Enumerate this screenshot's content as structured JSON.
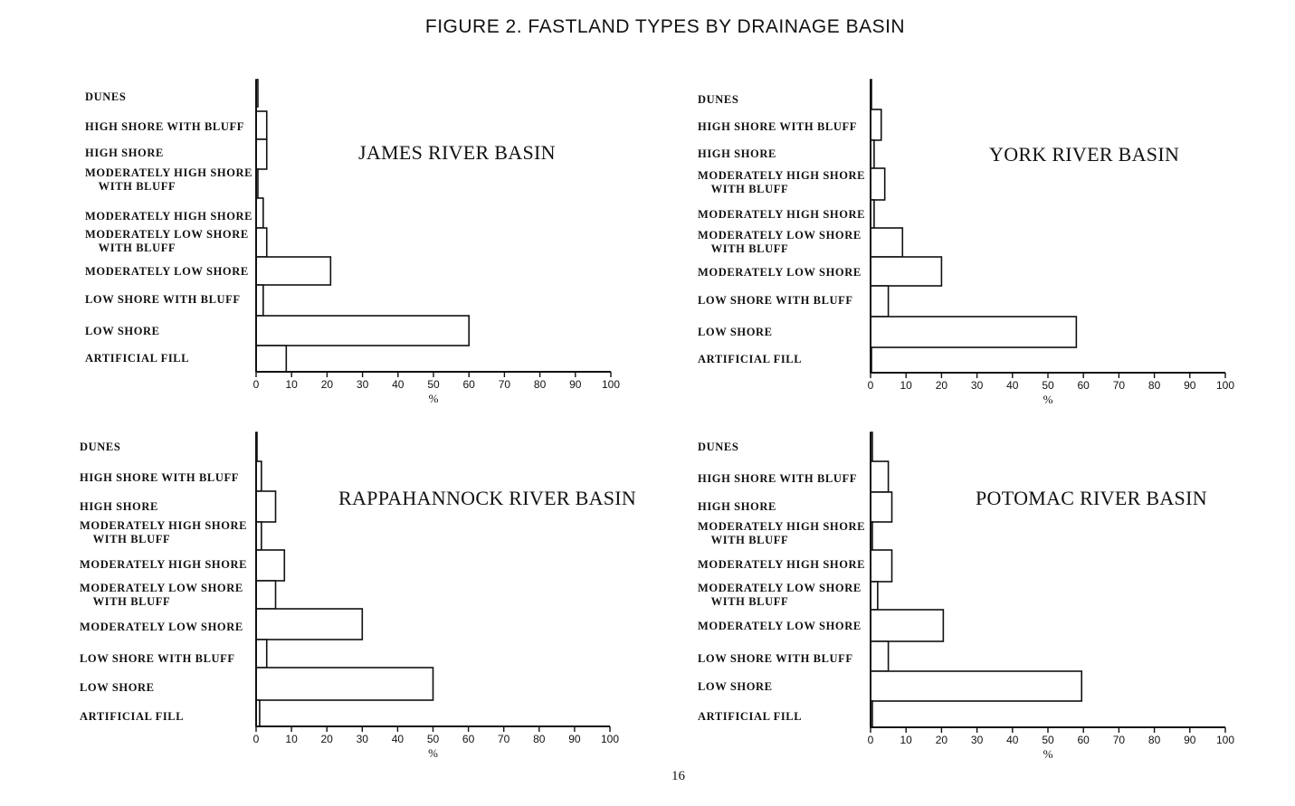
{
  "title": "FIGURE 2.  FASTLAND TYPES BY DRAINAGE BASIN",
  "page_number": "16",
  "chart_data": [
    {
      "type": "bar",
      "orientation": "horizontal",
      "title": "JAMES RIVER BASIN",
      "xlabel": "%",
      "xlim": [
        0,
        100
      ],
      "xticks": [
        "0",
        "10",
        "20",
        "30",
        "40",
        "50",
        "60",
        "70",
        "80",
        "90",
        "100"
      ],
      "categories": [
        "DUNES",
        "HIGH SHORE WITH BLUFF",
        "HIGH SHORE",
        "MODERATELY HIGH SHORE\n    WITH BLUFF",
        "MODERATELY HIGH SHORE",
        "MODERATELY LOW SHORE\n    WITH BLUFF",
        "MODERATELY LOW SHORE",
        "LOW SHORE WITH BLUFF",
        "LOW SHORE",
        "ARTIFICIAL FILL"
      ],
      "values": [
        0.5,
        3,
        3,
        0.5,
        2,
        3,
        21,
        2,
        60,
        8.5
      ]
    },
    {
      "type": "bar",
      "orientation": "horizontal",
      "title": "YORK RIVER BASIN",
      "xlabel": "%",
      "xlim": [
        0,
        100
      ],
      "xticks": [
        "0",
        "10",
        "20",
        "30",
        "40",
        "50",
        "60",
        "70",
        "80",
        "90",
        "100"
      ],
      "categories": [
        "DUNES",
        "HIGH SHORE WITH BLUFF",
        "HIGH SHORE",
        "MODERATELY HIGH SHORE\n    WITH BLUFF",
        "MODERATELY HIGH SHORE",
        "MODERATELY LOW SHORE\n    WITH BLUFF",
        "MODERATELY LOW SHORE",
        "LOW SHORE WITH BLUFF",
        "LOW SHORE",
        "ARTIFICIAL FILL"
      ],
      "values": [
        0,
        3,
        1,
        4,
        1,
        9,
        20,
        5,
        58,
        0
      ]
    },
    {
      "type": "bar",
      "orientation": "horizontal",
      "title": "RAPPAHANNOCK RIVER BASIN",
      "xlabel": "%",
      "xlim": [
        0,
        100
      ],
      "xticks": [
        "0",
        "10",
        "20",
        "30",
        "40",
        "50",
        "60",
        "70",
        "80",
        "90",
        "100"
      ],
      "categories": [
        "DUNES",
        "HIGH SHORE WITH BLUFF",
        "HIGH SHORE",
        "MODERATELY HIGH SHORE\n    WITH BLUFF",
        "MODERATELY HIGH SHORE",
        "MODERATELY LOW SHORE\n    WITH BLUFF",
        "MODERATELY LOW SHORE",
        "LOW SHORE WITH BLUFF",
        "LOW SHORE",
        "ARTIFICIAL FILL"
      ],
      "values": [
        0,
        1.5,
        5.5,
        1.5,
        8,
        5.5,
        30,
        3,
        50,
        1
      ]
    },
    {
      "type": "bar",
      "orientation": "horizontal",
      "title": "POTOMAC RIVER BASIN",
      "xlabel": "%",
      "xlim": [
        0,
        100
      ],
      "xticks": [
        "0",
        "10",
        "20",
        "30",
        "40",
        "50",
        "60",
        "70",
        "80",
        "90",
        "100"
      ],
      "categories": [
        "DUNES",
        "HIGH SHORE WITH BLUFF",
        "HIGH SHORE",
        "MODERATELY HIGH SHORE\n    WITH BLUFF",
        "MODERATELY HIGH SHORE",
        "MODERATELY LOW SHORE\n    WITH BLUFF",
        "MODERATELY LOW SHORE",
        "LOW SHORE WITH BLUFF",
        "LOW SHORE",
        "ARTIFICIAL FILL"
      ],
      "values": [
        0.5,
        5,
        6,
        0.5,
        6,
        2,
        20.5,
        5,
        59.5,
        0.5
      ]
    }
  ]
}
